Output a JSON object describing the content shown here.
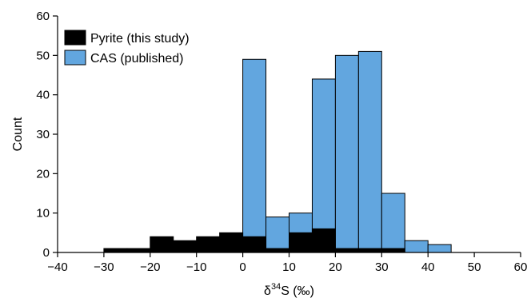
{
  "chart_data": {
    "type": "bar",
    "xlabel_base": "δ",
    "xlabel_sup": "34",
    "xlabel_rest": "S (‰)",
    "ylabel": "Count",
    "xlim": [
      -40,
      60
    ],
    "ylim": [
      0,
      60
    ],
    "xticks": [
      "−40",
      "−30",
      "−20",
      "−10",
      "0",
      "10",
      "20",
      "30",
      "40",
      "50",
      "60"
    ],
    "yticks": [
      "0",
      "10",
      "20",
      "30",
      "40",
      "50",
      "60"
    ],
    "xtick_values": [
      -40,
      -30,
      -20,
      -10,
      0,
      10,
      20,
      30,
      40,
      50,
      60
    ],
    "ytick_values": [
      0,
      10,
      20,
      30,
      40,
      50,
      60
    ],
    "bin_width": 5,
    "bin_starts": [
      -30,
      -25,
      -20,
      -15,
      -10,
      -5,
      0,
      5,
      10,
      15,
      20,
      25,
      30,
      35,
      40
    ],
    "series": [
      {
        "name": "CAS (published)",
        "color": "#62a6df",
        "values": [
          0,
          0,
          0,
          0,
          0,
          0,
          49,
          9,
          10,
          44,
          50,
          51,
          15,
          3,
          2
        ]
      },
      {
        "name": "Pyrite (this study)",
        "color": "#000000",
        "values": [
          1,
          1,
          4,
          3,
          4,
          5,
          4,
          1,
          5,
          6,
          1,
          1,
          1,
          0,
          0
        ]
      }
    ],
    "legend": [
      {
        "name": "Pyrite (this study)",
        "color": "#000000"
      },
      {
        "name": "CAS (published)",
        "color": "#62a6df"
      }
    ],
    "legend_position": "top-left",
    "grid": false
  }
}
